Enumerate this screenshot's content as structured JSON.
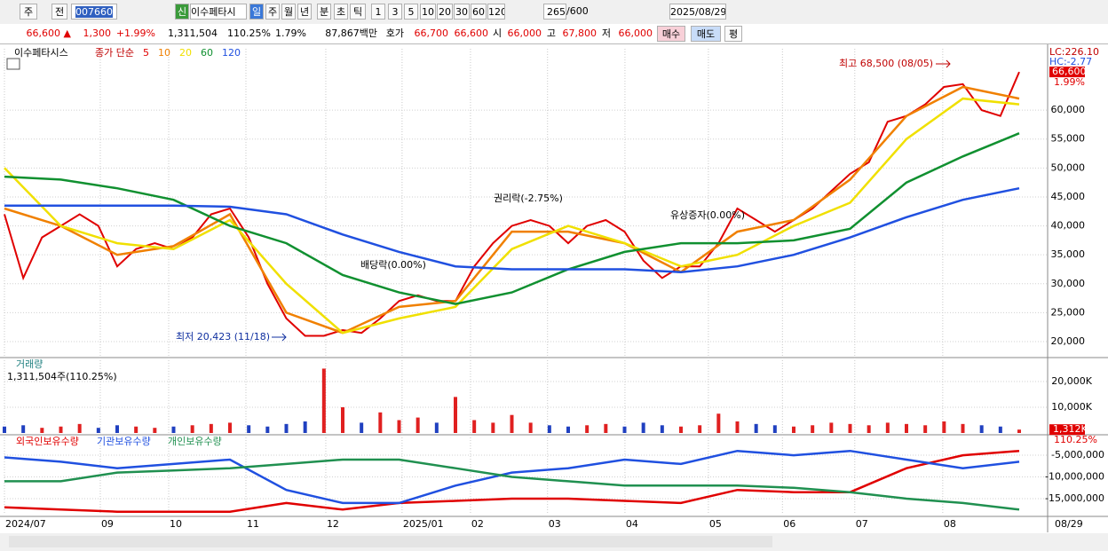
{
  "toolbar": {
    "row1": [
      "주",
      "전",
      "007660",
      "신",
      "이수페타시",
      "일",
      "주",
      "월",
      "년",
      "분",
      "초",
      "틱",
      "1",
      "3",
      "5",
      "10",
      "20",
      "30",
      "60",
      "120",
      "265",
      "/600",
      "2025/08/29"
    ],
    "row2": [
      "66,600 ▲",
      "1,300",
      "+1.99%",
      "1,311,504",
      "110.25%",
      "1.79%",
      "87,867백만",
      "호가",
      "66,700",
      "66,600",
      "시",
      "66,000",
      "고",
      "67,800",
      "저",
      "66,000",
      "매수",
      "매도",
      "평"
    ]
  },
  "chart_data": [
    {
      "type": "line",
      "title": "이수페타시스",
      "legend_title": "종가 단순",
      "x": [
        0,
        1,
        2,
        3,
        4,
        5,
        6,
        7,
        8,
        9,
        10,
        11,
        12,
        13,
        14,
        15,
        16,
        17,
        18,
        19,
        20,
        21,
        22,
        23,
        24,
        25,
        26,
        27,
        28,
        29,
        30,
        31,
        32,
        33,
        34,
        35,
        36,
        37,
        38,
        39,
        40,
        41,
        42,
        43,
        44,
        45,
        46,
        47,
        48,
        49,
        50,
        51,
        52,
        53,
        54
      ],
      "series": [
        {
          "name": "5",
          "color": "#e00000",
          "values": [
            42000,
            31000,
            38000,
            40000,
            42000,
            40000,
            33000,
            36000,
            37000,
            36000,
            38000,
            42000,
            43000,
            38000,
            30000,
            24000,
            21000,
            21000,
            22000,
            21500,
            24000,
            27000,
            28000,
            27000,
            27000,
            33000,
            37000,
            40000,
            41000,
            40000,
            37000,
            40000,
            41000,
            39000,
            34000,
            31000,
            33000,
            33000,
            37000,
            43000,
            41000,
            39000,
            41000,
            43000,
            46000,
            49000,
            51000,
            58000,
            59000,
            61000,
            64000,
            64500,
            60000,
            59000,
            66600
          ]
        },
        {
          "name": "10",
          "color": "#f08000",
          "x": [
            0,
            3,
            6,
            9,
            12,
            15,
            18,
            21,
            24,
            27,
            30,
            33,
            36,
            39,
            42,
            45,
            48,
            51,
            54
          ],
          "values": [
            43000,
            40000,
            35000,
            36500,
            42000,
            25000,
            21500,
            26000,
            27000,
            39000,
            39000,
            37000,
            32000,
            39000,
            41000,
            48000,
            59000,
            64000,
            62000
          ]
        },
        {
          "name": "20",
          "color": "#f0e000",
          "x": [
            0,
            3,
            6,
            9,
            12,
            15,
            18,
            21,
            24,
            27,
            30,
            33,
            36,
            39,
            42,
            45,
            48,
            51,
            54
          ],
          "values": [
            50000,
            40000,
            37000,
            36000,
            41000,
            30000,
            21500,
            24000,
            26000,
            36000,
            40000,
            37000,
            33000,
            35000,
            40000,
            44000,
            55000,
            62000,
            61000
          ]
        },
        {
          "name": "60",
          "color": "#109030",
          "x": [
            0,
            3,
            6,
            9,
            12,
            15,
            18,
            21,
            24,
            27,
            30,
            33,
            36,
            39,
            42,
            45,
            48,
            51,
            54
          ],
          "values": [
            48500,
            48000,
            46500,
            44500,
            40000,
            37000,
            31500,
            28500,
            26500,
            28500,
            32500,
            35500,
            37000,
            37000,
            37500,
            39500,
            47500,
            52000,
            56000
          ]
        },
        {
          "name": "120",
          "color": "#2050e0",
          "x": [
            0,
            3,
            6,
            9,
            12,
            15,
            18,
            21,
            24,
            27,
            30,
            33,
            36,
            39,
            42,
            45,
            48,
            51,
            54
          ],
          "values": [
            43500,
            43500,
            43500,
            43500,
            43300,
            42000,
            38500,
            35500,
            33000,
            32500,
            32500,
            32500,
            32000,
            33000,
            35000,
            38000,
            41500,
            44500,
            46500
          ]
        }
      ],
      "xlim": [
        0,
        54
      ],
      "ylim": [
        17700,
        70600
      ],
      "yticks": [
        {
          "value": 20000,
          "label": "20,000"
        },
        {
          "value": 25000,
          "label": "25,000"
        },
        {
          "value": 30000,
          "label": "30,000"
        },
        {
          "value": 35000,
          "label": "35,000"
        },
        {
          "value": 40000,
          "label": "40,000"
        },
        {
          "value": 45000,
          "label": "45,000"
        },
        {
          "value": 50000,
          "label": "50,000"
        },
        {
          "value": 55000,
          "label": "55,000"
        },
        {
          "value": 60000,
          "label": "60,000"
        }
      ],
      "xticks": [
        {
          "value": 0,
          "label": "2024/07"
        },
        {
          "value": 5.1,
          "label": "09"
        },
        {
          "value": 8.74,
          "label": "10"
        },
        {
          "value": 12.85,
          "label": "11"
        },
        {
          "value": 17.1,
          "label": "12"
        },
        {
          "value": 21.16,
          "label": "2025/01"
        },
        {
          "value": 24.8,
          "label": "02"
        },
        {
          "value": 28.9,
          "label": "03"
        },
        {
          "value": 33.02,
          "label": "04"
        },
        {
          "value": 37.46,
          "label": "05"
        },
        {
          "value": 41.4,
          "label": "06"
        },
        {
          "value": 45.25,
          "label": "07"
        },
        {
          "value": 49.93,
          "label": "08"
        }
      ],
      "end_label": "08/29",
      "annotations": [
        "최고 68,500 (08/05)",
        "최저 20,423 (11/18)",
        "권리락(-2.75%)",
        "배당락(0.00%)",
        "유상증자(0.00%)"
      ],
      "side_labels": [
        "LC:226.10",
        "HC:-2.77",
        "66,600",
        "1.99%"
      ],
      "grid": true
    },
    {
      "type": "bar",
      "title": "거래량",
      "subtitle": "1,311,504주(110.25%)",
      "color": "#2040c0",
      "up_color": "#e02020",
      "values": [
        2500,
        3000,
        2000,
        2500,
        3500,
        2000,
        3000,
        2500,
        2000,
        2500,
        3000,
        3500,
        4000,
        3000,
        2500,
        3500,
        4500,
        25000,
        10000,
        4000,
        8000,
        5000,
        6000,
        4000,
        14000,
        5000,
        4000,
        7000,
        4000,
        3000,
        2500,
        3000,
        3500,
        2500,
        4000,
        3000,
        2500,
        3000,
        7500,
        4500,
        3500,
        3000,
        2500,
        3000,
        4000,
        3500,
        3000,
        4000,
        3500,
        3000,
        4500,
        3500,
        3000,
        2500,
        1312
      ],
      "ylim": [
        0,
        28600
      ],
      "yticks": [
        {
          "value": 10000,
          "label": "10,000K"
        },
        {
          "value": 20000,
          "label": "20,000K"
        }
      ],
      "side_labels": [
        "1,312K",
        "110.25%"
      ]
    },
    {
      "type": "line",
      "x": [
        0,
        3,
        6,
        9,
        12,
        15,
        18,
        21,
        24,
        27,
        30,
        33,
        36,
        39,
        42,
        45,
        48,
        51,
        54
      ],
      "series": [
        {
          "name": "외국인보유수량",
          "color": "#e00000",
          "values": [
            -17000000,
            -17500000,
            -18000000,
            -18000000,
            -18000000,
            -16000000,
            -17500000,
            -16000000,
            -15500000,
            -15000000,
            -15000000,
            -15500000,
            -16000000,
            -13000000,
            -13500000,
            -13500000,
            -8000000,
            -5000000,
            -4000000
          ]
        },
        {
          "name": "기관보유수량",
          "color": "#2050e0",
          "values": [
            -5500000,
            -6500000,
            -8000000,
            -7000000,
            -6000000,
            -13000000,
            -16000000,
            -16000000,
            -12000000,
            -9000000,
            -8000000,
            -6000000,
            -7000000,
            -4000000,
            -5000000,
            -4000000,
            -6000000,
            -8000000,
            -6500000
          ]
        },
        {
          "name": "개인보유수량",
          "color": "#209050",
          "values": [
            -11000000,
            -11000000,
            -9000000,
            -8500000,
            -8000000,
            -7000000,
            -6000000,
            -6000000,
            -8000000,
            -10000000,
            -11000000,
            -12000000,
            -12000000,
            -12000000,
            -12500000,
            -13500000,
            -15000000,
            -16000000,
            -17500000
          ]
        }
      ],
      "ylim": [
        -18670000,
        -700000
      ],
      "yticks": [
        {
          "value": -5000000,
          "label": "-5,000,000"
        },
        {
          "value": -10000000,
          "label": "-10,000,000"
        },
        {
          "value": -15000000,
          "label": "-15,000,000"
        }
      ]
    }
  ]
}
